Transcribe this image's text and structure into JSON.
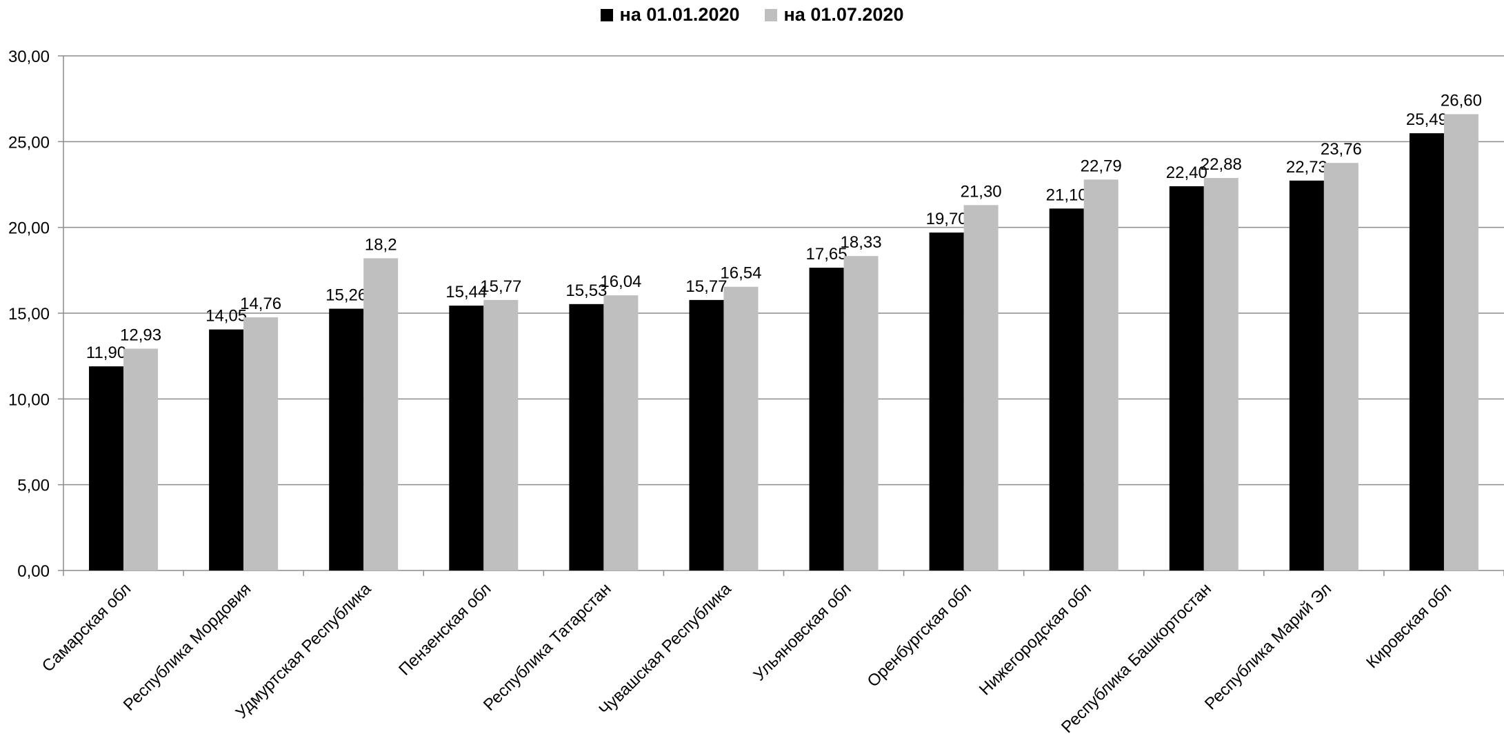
{
  "chart_data": {
    "type": "bar",
    "title": "",
    "xlabel": "",
    "ylabel": "",
    "ylim": [
      0,
      30
    ],
    "yticks": [
      "0,00",
      "5,00",
      "10,00",
      "15,00",
      "20,00",
      "25,00",
      "30,00"
    ],
    "grid": true,
    "legend_position": "top-center",
    "categories": [
      "Самарская обл",
      "Республика Мордовия",
      "Удмуртская Республика",
      "Пензенская обл",
      "Республика Татарстан",
      "Чувашская Республика",
      "Ульяновская обл",
      "Оренбургская обл",
      "Нижегородская обл",
      "Республика Башкортостан",
      "Республика Марий Эл",
      "Кировская обл"
    ],
    "series": [
      {
        "name": "на 01.01.2020",
        "color": "#000000",
        "values": [
          11.9,
          14.05,
          15.26,
          15.44,
          15.53,
          15.77,
          17.65,
          19.7,
          21.1,
          22.4,
          22.73,
          25.49
        ],
        "labels": [
          "11,90",
          "14,05",
          "15,26",
          "15,44",
          "15,53",
          "15,77",
          "17,65",
          "19,70",
          "21,10",
          "22,40",
          "22,73",
          "25,49"
        ]
      },
      {
        "name": "на 01.07.2020",
        "color": "#bfbfbf",
        "values": [
          12.93,
          14.76,
          18.2,
          15.77,
          16.04,
          16.54,
          18.33,
          21.3,
          22.79,
          22.88,
          23.76,
          26.6
        ],
        "labels": [
          "12,93",
          "14,76",
          "18,2",
          "15,77",
          "16,04",
          "16,54",
          "18,33",
          "21,30",
          "22,79",
          "22,88",
          "23,76",
          "26,60"
        ]
      }
    ]
  }
}
